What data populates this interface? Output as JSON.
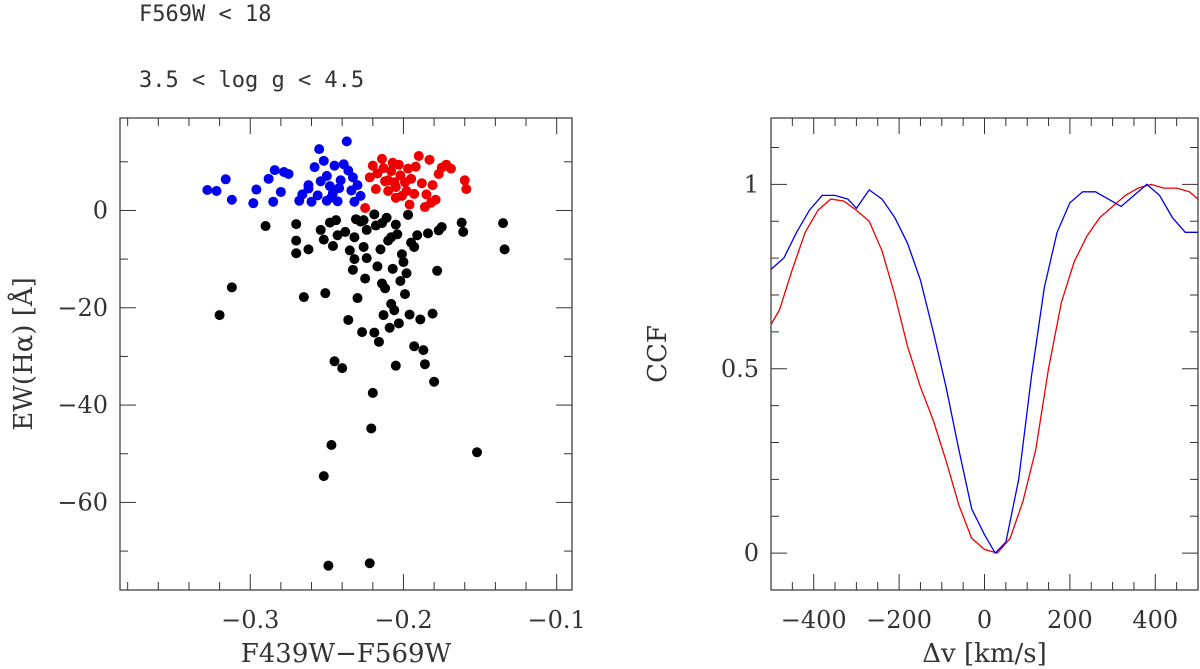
{
  "annotations": {
    "line1": "F569W < 18",
    "line2": "3.5 < log g < 4.5"
  },
  "chart_data": [
    {
      "type": "scatter",
      "xlabel": "F439W−F569W",
      "ylabel": "EW(Hα) [Å]",
      "xlim": [
        -0.385,
        -0.09
      ],
      "ylim": [
        -78,
        19
      ],
      "xticks": [
        -0.3,
        -0.2,
        -0.1
      ],
      "xtick_labels": [
        "−0.3",
        "−0.2",
        "−0.1"
      ],
      "yticks": [
        -60,
        -40,
        -20,
        0
      ],
      "ytick_labels": [
        "−60",
        "−40",
        "−20",
        "0"
      ],
      "grid": false,
      "series": [
        {
          "color": "#0000ee",
          "points": [
            [
              -0.328,
              4.2
            ],
            [
              -0.322,
              4.0
            ],
            [
              -0.316,
              6.4
            ],
            [
              -0.312,
              2.2
            ],
            [
              -0.298,
              1.5
            ],
            [
              -0.296,
              4.3
            ],
            [
              -0.288,
              6.5
            ],
            [
              -0.284,
              8.3
            ],
            [
              -0.28,
              3.8
            ],
            [
              -0.278,
              7.9
            ],
            [
              -0.275,
              7.5
            ],
            [
              -0.285,
              1.8
            ],
            [
              -0.266,
              3.3
            ],
            [
              -0.262,
              5.2
            ],
            [
              -0.258,
              8.9
            ],
            [
              -0.255,
              12.6
            ],
            [
              -0.252,
              10.2
            ],
            [
              -0.25,
              7.1
            ],
            [
              -0.248,
              5.0
            ],
            [
              -0.246,
              3.6
            ],
            [
              -0.245,
              9.2
            ],
            [
              -0.243,
              1.9
            ],
            [
              -0.241,
              6.2
            ],
            [
              -0.239,
              9.5
            ],
            [
              -0.237,
              14.2
            ],
            [
              -0.236,
              8.2
            ],
            [
              -0.234,
              4.1
            ],
            [
              -0.233,
              6.8
            ],
            [
              -0.232,
              1.8
            ],
            [
              -0.23,
              5.2
            ],
            [
              -0.228,
              3.0
            ],
            [
              -0.26,
              1.8
            ],
            [
              -0.262,
              4.5
            ],
            [
              -0.256,
              3.1
            ],
            [
              -0.25,
              2.0
            ],
            [
              -0.268,
              2.0
            ],
            [
              -0.254,
              6.0
            ],
            [
              -0.242,
              4.6
            ],
            [
              -0.247,
              2.7
            ]
          ]
        },
        {
          "color": "#ee0000",
          "points": [
            [
              -0.225,
              0.5
            ],
            [
              -0.22,
              9.2
            ],
            [
              -0.217,
              7.6
            ],
            [
              -0.214,
              10.6
            ],
            [
              -0.212,
              6.0
            ],
            [
              -0.21,
              4.0
            ],
            [
              -0.208,
              8.1
            ],
            [
              -0.206,
              5.8
            ],
            [
              -0.205,
              2.6
            ],
            [
              -0.203,
              9.4
            ],
            [
              -0.202,
              7.2
            ],
            [
              -0.201,
              3.0
            ],
            [
              -0.199,
              5.8
            ],
            [
              -0.197,
              8.6
            ],
            [
              -0.196,
              1.2
            ],
            [
              -0.195,
              6.5
            ],
            [
              -0.193,
              3.4
            ],
            [
              -0.192,
              9.0
            ],
            [
              -0.19,
              11.2
            ],
            [
              -0.188,
              5.6
            ],
            [
              -0.186,
              0.7
            ],
            [
              -0.185,
              3.3
            ],
            [
              -0.183,
              10.4
            ],
            [
              -0.181,
              5.2
            ],
            [
              -0.179,
              2.2
            ],
            [
              -0.177,
              7.5
            ],
            [
              -0.175,
              8.8
            ],
            [
              -0.172,
              9.4
            ],
            [
              -0.169,
              8.6
            ],
            [
              -0.16,
              6.2
            ],
            [
              -0.159,
              4.4
            ],
            [
              -0.222,
              6.8
            ],
            [
              -0.218,
              4.4
            ],
            [
              -0.21,
              6.2
            ],
            [
              -0.205,
              4.8
            ],
            [
              -0.213,
              8.7
            ],
            [
              -0.207,
              9.8
            ],
            [
              -0.198,
              4.0
            ],
            [
              -0.182,
              1.6
            ]
          ]
        },
        {
          "color": "#000000",
          "points": [
            [
              -0.32,
              -21.5
            ],
            [
              -0.312,
              -15.8
            ],
            [
              -0.29,
              -3.2
            ],
            [
              -0.27,
              -2.8
            ],
            [
              -0.27,
              -6.2
            ],
            [
              -0.27,
              -8.8
            ],
            [
              -0.265,
              -17.8
            ],
            [
              -0.262,
              -8.0
            ],
            [
              -0.254,
              -4.0
            ],
            [
              -0.252,
              -6.0
            ],
            [
              -0.251,
              -17.0
            ],
            [
              -0.248,
              -2.5
            ],
            [
              -0.247,
              -48.2
            ],
            [
              -0.246,
              -7.3
            ],
            [
              -0.245,
              -31.0
            ],
            [
              -0.244,
              -2.0
            ],
            [
              -0.243,
              -5.1
            ],
            [
              -0.24,
              -32.4
            ],
            [
              -0.238,
              -4.4
            ],
            [
              -0.236,
              -22.5
            ],
            [
              -0.235,
              -8.2
            ],
            [
              -0.233,
              -12.2
            ],
            [
              -0.232,
              -5.5
            ],
            [
              -0.23,
              -18.0
            ],
            [
              -0.228,
              -2.3
            ],
            [
              -0.227,
              -25.0
            ],
            [
              -0.226,
              -7.5
            ],
            [
              -0.225,
              -14.0
            ],
            [
              -0.224,
              -9.8
            ],
            [
              -0.222,
              -72.5
            ],
            [
              -0.221,
              -44.8
            ],
            [
              -0.22,
              -37.5
            ],
            [
              -0.219,
              -25.1
            ],
            [
              -0.218,
              -3.1
            ],
            [
              -0.217,
              -11.5
            ],
            [
              -0.215,
              -8.0
            ],
            [
              -0.214,
              -15.0
            ],
            [
              -0.213,
              -21.5
            ],
            [
              -0.212,
              -16.0
            ],
            [
              -0.21,
              -6.2
            ],
            [
              -0.209,
              -24.1
            ],
            [
              -0.208,
              -19.2
            ],
            [
              -0.207,
              -12.0
            ],
            [
              -0.206,
              -20.5
            ],
            [
              -0.205,
              -31.9
            ],
            [
              -0.204,
              -4.9
            ],
            [
              -0.203,
              -23.2
            ],
            [
              -0.202,
              -14.5
            ],
            [
              -0.2,
              -10.6
            ],
            [
              -0.199,
              -17.2
            ],
            [
              -0.198,
              -12.9
            ],
            [
              -0.196,
              -21.4
            ],
            [
              -0.195,
              -6.6
            ],
            [
              -0.193,
              -27.9
            ],
            [
              -0.191,
              -5.1
            ],
            [
              -0.189,
              -22.4
            ],
            [
              -0.187,
              -28.7
            ],
            [
              -0.186,
              -31.6
            ],
            [
              -0.184,
              -4.7
            ],
            [
              -0.181,
              -21.2
            ],
            [
              -0.18,
              -35.2
            ],
            [
              -0.178,
              -12.4
            ],
            [
              -0.177,
              -4.1
            ],
            [
              -0.175,
              -3.4
            ],
            [
              -0.162,
              -2.5
            ],
            [
              -0.161,
              -4.4
            ],
            [
              -0.152,
              -49.7
            ],
            [
              -0.135,
              -2.6
            ],
            [
              -0.134,
              -8.0
            ],
            [
              -0.252,
              -54.6
            ],
            [
              -0.249,
              -73.0
            ],
            [
              -0.231,
              -1.8
            ],
            [
              -0.219,
              -0.8
            ],
            [
              -0.214,
              -2.6
            ],
            [
              -0.226,
              -2.0
            ],
            [
              -0.211,
              -1.5
            ],
            [
              -0.205,
              -2.9
            ],
            [
              -0.197,
              -0.9
            ],
            [
              -0.201,
              -9.0
            ],
            [
              -0.193,
              -7.5
            ],
            [
              -0.208,
              -5.5
            ],
            [
              -0.224,
              -4.0
            ],
            [
              -0.232,
              -10.0
            ],
            [
              -0.216,
              -27.0
            ]
          ]
        }
      ]
    },
    {
      "type": "line",
      "xlabel": "Δv [km/s]",
      "ylabel": "CCF",
      "xlim": [
        -500,
        500
      ],
      "ylim": [
        -0.1,
        1.18
      ],
      "xticks": [
        -400,
        -200,
        0,
        200,
        400
      ],
      "xtick_labels": [
        "−400",
        "−200",
        "0",
        "200",
        "400"
      ],
      "yticks": [
        0,
        0.5,
        1
      ],
      "ytick_labels": [
        "0",
        "0.5",
        "1"
      ],
      "grid": false,
      "series": [
        {
          "color": "#ee0000",
          "points": [
            [
              -500,
              0.62
            ],
            [
              -480,
              0.66
            ],
            [
              -450,
              0.77
            ],
            [
              -420,
              0.87
            ],
            [
              -390,
              0.93
            ],
            [
              -360,
              0.96
            ],
            [
              -330,
              0.955
            ],
            [
              -300,
              0.93
            ],
            [
              -270,
              0.9
            ],
            [
              -240,
              0.82
            ],
            [
              -210,
              0.7
            ],
            [
              -180,
              0.56
            ],
            [
              -150,
              0.45
            ],
            [
              -120,
              0.36
            ],
            [
              -90,
              0.25
            ],
            [
              -60,
              0.13
            ],
            [
              -30,
              0.04
            ],
            [
              0,
              0.01
            ],
            [
              30,
              0.0
            ],
            [
              60,
              0.04
            ],
            [
              90,
              0.14
            ],
            [
              120,
              0.28
            ],
            [
              150,
              0.5
            ],
            [
              180,
              0.68
            ],
            [
              210,
              0.79
            ],
            [
              240,
              0.86
            ],
            [
              270,
              0.91
            ],
            [
              300,
              0.94
            ],
            [
              330,
              0.97
            ],
            [
              360,
              0.99
            ],
            [
              390,
              1.0
            ],
            [
              420,
              0.99
            ],
            [
              450,
              0.99
            ],
            [
              480,
              0.98
            ],
            [
              500,
              0.96
            ]
          ]
        },
        {
          "color": "#0000ee",
          "points": [
            [
              -500,
              0.77
            ],
            [
              -470,
              0.8
            ],
            [
              -440,
              0.87
            ],
            [
              -410,
              0.93
            ],
            [
              -380,
              0.97
            ],
            [
              -350,
              0.97
            ],
            [
              -320,
              0.96
            ],
            [
              -300,
              0.935
            ],
            [
              -270,
              0.985
            ],
            [
              -240,
              0.96
            ],
            [
              -210,
              0.91
            ],
            [
              -180,
              0.84
            ],
            [
              -150,
              0.74
            ],
            [
              -120,
              0.6
            ],
            [
              -90,
              0.45
            ],
            [
              -60,
              0.28
            ],
            [
              -30,
              0.12
            ],
            [
              0,
              0.05
            ],
            [
              25,
              0.0
            ],
            [
              50,
              0.03
            ],
            [
              80,
              0.2
            ],
            [
              110,
              0.48
            ],
            [
              140,
              0.72
            ],
            [
              170,
              0.87
            ],
            [
              200,
              0.95
            ],
            [
              230,
              0.98
            ],
            [
              260,
              0.98
            ],
            [
              290,
              0.96
            ],
            [
              320,
              0.94
            ],
            [
              350,
              0.97
            ],
            [
              380,
              1.0
            ],
            [
              410,
              0.97
            ],
            [
              440,
              0.91
            ],
            [
              470,
              0.87
            ],
            [
              500,
              0.87
            ]
          ]
        }
      ]
    }
  ]
}
